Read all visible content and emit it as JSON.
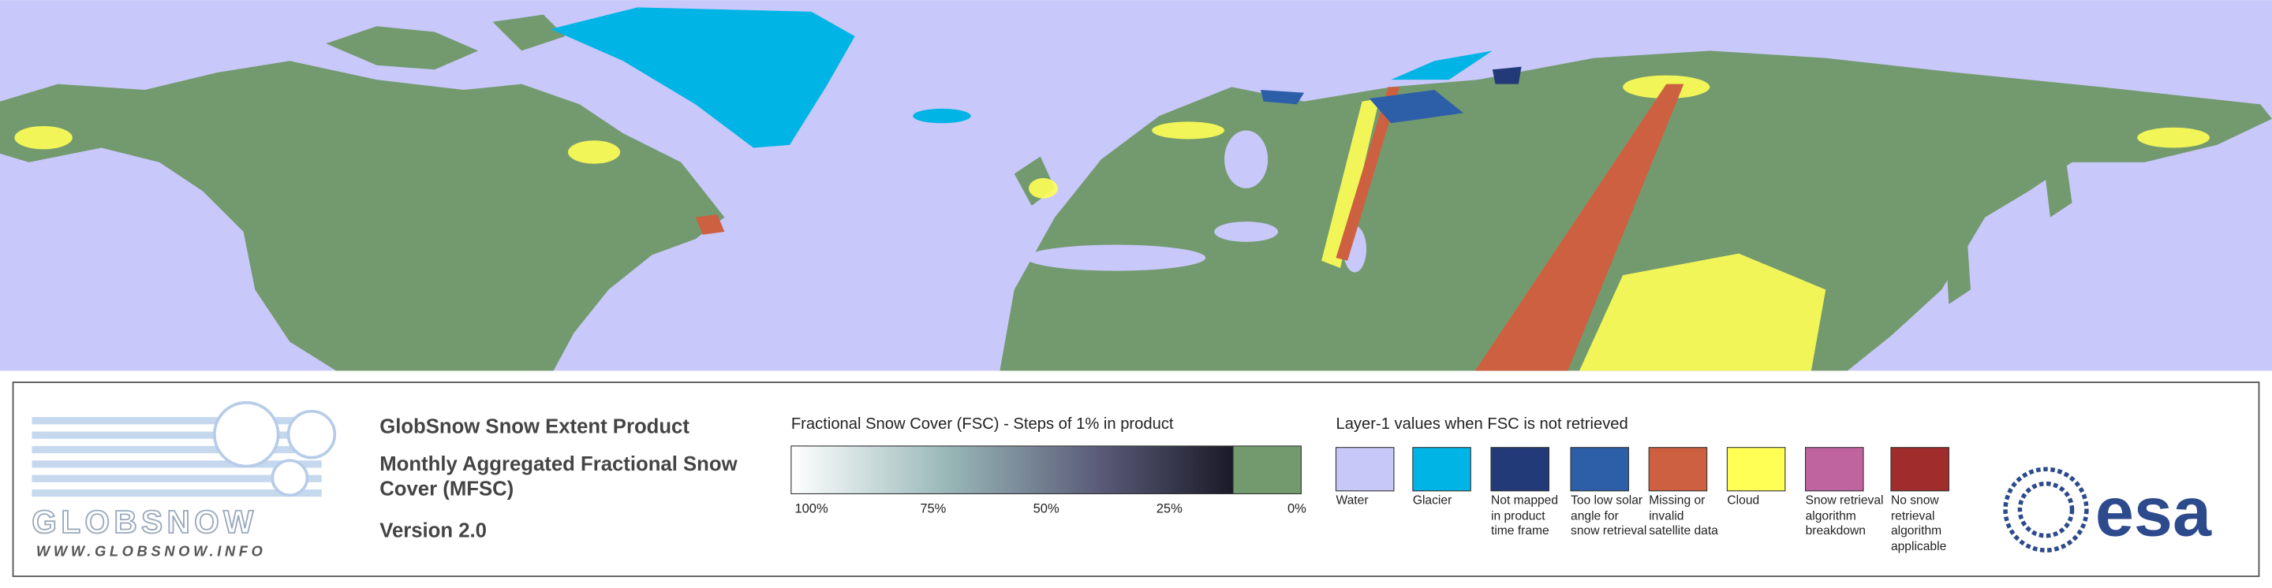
{
  "logo": {
    "name": "GLOBSNOW",
    "url": "WWW.GLOBSNOW.INFO"
  },
  "header": {
    "title": "GlobSnow Snow Extent Product",
    "product": "Monthly Aggregated Fractional Snow Cover (MFSC)",
    "version": "Version 2.0"
  },
  "fsc_legend": {
    "title": "Fractional Snow Cover (FSC) - Steps of 1% in product",
    "labels": [
      "100%",
      "75%",
      "50%",
      "25%",
      "0%"
    ]
  },
  "layer1_legend": {
    "title": "Layer-1 values when FSC is not retrieved",
    "items": [
      {
        "label": "Water",
        "color": "#c8c8f8"
      },
      {
        "label": "Glacier",
        "color": "#00b4e6"
      },
      {
        "label": "Not mapped in product time frame",
        "color": "#233a78"
      },
      {
        "label": "Too low solar angle for snow retrieval",
        "color": "#2d5fa8"
      },
      {
        "label": "Missing or invalid satellite data",
        "color": "#cc6040"
      },
      {
        "label": "Cloud",
        "color": "#ffff55"
      },
      {
        "label": "Snow retrieval algorithm breakdown",
        "color": "#c064a0"
      },
      {
        "label": "No snow retrieval algorithm applicable",
        "color": "#a02c2c"
      }
    ]
  },
  "agency": "esa"
}
